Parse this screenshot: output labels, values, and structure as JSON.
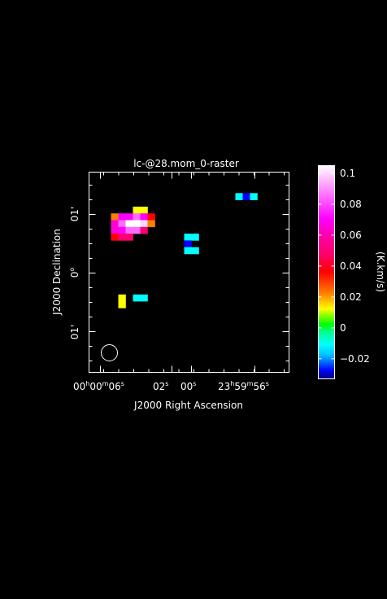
{
  "chart_data": {
    "type": "heatmap",
    "title": "lc-@28.mom_0-raster",
    "xlabel": "J2000 Right Ascension",
    "ylabel": "J2000 Declination",
    "x_ticks": [
      {
        "label": "00",
        "sup": "h",
        "label2": "00",
        "sup2": "m",
        "label3": "06",
        "sup3": "s"
      },
      {
        "label": "02",
        "sup": "s"
      },
      {
        "label": "00",
        "sup": "s"
      },
      {
        "label": "23",
        "sup": "h",
        "label2": "59",
        "sup2": "m",
        "label3": "56",
        "sup3": "s"
      }
    ],
    "y_ticks": [
      {
        "label": "01'"
      },
      {
        "label": "0",
        "sup": "o"
      },
      {
        "label": "01'"
      }
    ],
    "colorbar": {
      "label": "(K.km/s)",
      "range": [
        -0.033,
        0.105
      ],
      "ticks": [
        "0.1",
        "0.08",
        "0.06",
        "0.04",
        "0.02",
        "0",
        "−0.02"
      ],
      "tick_values": [
        0.1,
        0.08,
        0.06,
        0.04,
        0.02,
        0,
        -0.02
      ],
      "stops": [
        {
          "v": -0.033,
          "c": "#000080"
        },
        {
          "v": -0.028,
          "c": "#0000ff"
        },
        {
          "v": -0.018,
          "c": "#00bfff"
        },
        {
          "v": -0.011,
          "c": "#00ffff"
        },
        {
          "v": -0.003,
          "c": "#00ff90"
        },
        {
          "v": 0.002,
          "c": "#00ff00"
        },
        {
          "v": 0.008,
          "c": "#90ff00"
        },
        {
          "v": 0.012,
          "c": "#ffff00"
        },
        {
          "v": 0.022,
          "c": "#ff8000"
        },
        {
          "v": 0.036,
          "c": "#ff0000"
        },
        {
          "v": 0.048,
          "c": "#ff0070"
        },
        {
          "v": 0.058,
          "c": "#ff00a0"
        },
        {
          "v": 0.07,
          "c": "#ff00ff"
        },
        {
          "v": 0.09,
          "c": "#ff90ff"
        },
        {
          "v": 0.105,
          "c": "#ffffff"
        }
      ]
    },
    "pixels": [
      {
        "col": 6,
        "row": 3,
        "value": 0.012
      },
      {
        "col": 7,
        "row": 3,
        "value": 0.012
      },
      {
        "col": 3,
        "row": 4,
        "value": 0.022
      },
      {
        "col": 4,
        "row": 4,
        "value": 0.07
      },
      {
        "col": 5,
        "row": 4,
        "value": 0.07
      },
      {
        "col": 6,
        "row": 4,
        "value": 0.085
      },
      {
        "col": 7,
        "row": 4,
        "value": 0.07
      },
      {
        "col": 8,
        "row": 4,
        "value": 0.036
      },
      {
        "col": 3,
        "row": 5,
        "value": 0.065
      },
      {
        "col": 4,
        "row": 5,
        "value": 0.085
      },
      {
        "col": 5,
        "row": 5,
        "value": 0.105
      },
      {
        "col": 6,
        "row": 5,
        "value": 0.105
      },
      {
        "col": 7,
        "row": 5,
        "value": 0.1
      },
      {
        "col": 8,
        "row": 5,
        "value": 0.022
      },
      {
        "col": 3,
        "row": 6,
        "value": 0.065
      },
      {
        "col": 4,
        "row": 6,
        "value": 0.07
      },
      {
        "col": 5,
        "row": 6,
        "value": 0.085
      },
      {
        "col": 6,
        "row": 6,
        "value": 0.085
      },
      {
        "col": 7,
        "row": 6,
        "value": 0.048
      },
      {
        "col": 3,
        "row": 7,
        "value": 0.036
      },
      {
        "col": 4,
        "row": 7,
        "value": 0.048
      },
      {
        "col": 5,
        "row": 7,
        "value": 0.048
      },
      {
        "col": 13,
        "row": 7,
        "value": -0.011
      },
      {
        "col": 14,
        "row": 7,
        "value": -0.011
      },
      {
        "col": 13,
        "row": 8,
        "value": -0.028
      },
      {
        "col": 13,
        "row": 9,
        "value": -0.011
      },
      {
        "col": 14,
        "row": 9,
        "value": -0.011
      },
      {
        "col": 20,
        "row": 1,
        "value": -0.011
      },
      {
        "col": 21,
        "row": 1,
        "value": -0.028
      },
      {
        "col": 22,
        "row": 1,
        "value": -0.011
      },
      {
        "col": 4,
        "row": 16,
        "value": 0.012
      },
      {
        "col": 4,
        "row": 17,
        "value": 0.012
      },
      {
        "col": 6,
        "row": 16,
        "value": -0.011
      },
      {
        "col": 7,
        "row": 16,
        "value": -0.011
      }
    ],
    "beam": "circle",
    "grid": false
  }
}
